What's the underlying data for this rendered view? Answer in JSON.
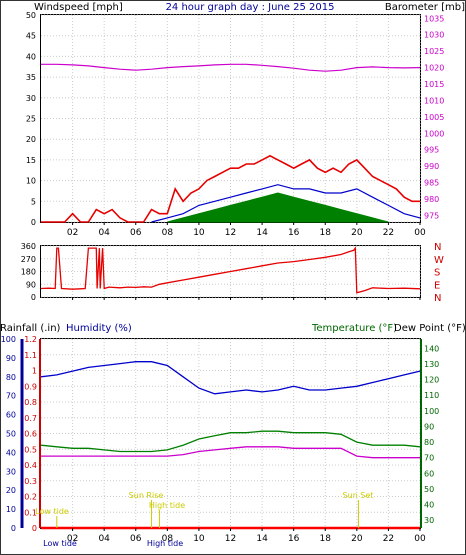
{
  "header": {
    "left_label": "Windspeed [mph]",
    "title": "24 hour graph day : June 25 2015",
    "right_label": "Barometer [mb]"
  },
  "colors": {
    "wind": "#e60000",
    "gust_fill": "#008000",
    "avg": "#0000cc",
    "baro": "#cc00cc",
    "rain_axis": "#cc0000",
    "hum_axis": "#000099",
    "temp_axis": "#006600",
    "sun": "#cccc00",
    "grid": "#cccccc"
  },
  "chart_data": [
    {
      "type": "line",
      "x_ticks": [
        "02",
        "04",
        "06",
        "08",
        "10",
        "12",
        "14",
        "16",
        "18",
        "20",
        "22",
        "00"
      ],
      "left_axis": {
        "ticks": [
          0,
          5,
          10,
          15,
          20,
          25,
          30,
          35,
          40,
          45,
          50
        ],
        "ylim": [
          0,
          50
        ]
      },
      "right_axis": {
        "ticks": [
          975,
          980,
          985,
          990,
          995,
          1000,
          1005,
          1010,
          1015,
          1020,
          1025,
          1030,
          1035
        ],
        "ylim": [
          973,
          1036
        ]
      },
      "series": [
        {
          "axis": "left",
          "x": [
            0,
            0.5,
            1,
            1.5,
            2,
            2.5,
            3,
            3.5,
            4,
            4.5,
            5,
            5.5,
            6,
            6.5,
            7,
            7.5,
            8,
            8.5,
            9,
            9.5,
            10,
            10.5,
            11,
            11.5,
            12,
            12.5,
            13,
            13.5,
            14,
            14.5,
            15,
            15.5,
            16,
            16.5,
            17,
            17.5,
            18,
            18.5,
            19,
            19.5,
            20,
            20.5,
            21,
            21.5,
            22,
            22.5,
            23,
            23.5,
            24
          ],
          "y": [
            0,
            0,
            0,
            0,
            2,
            0,
            0,
            3,
            2,
            3,
            1,
            0,
            0,
            0,
            3,
            2,
            2,
            8,
            5,
            7,
            8,
            10,
            11,
            12,
            13,
            13,
            14,
            14,
            15,
            16,
            15,
            14,
            13,
            14,
            15,
            13,
            12,
            13,
            12,
            14,
            15,
            13,
            11,
            10,
            9,
            8,
            6,
            5,
            5
          ]
        },
        {
          "axis": "left",
          "x": [
            7,
            8,
            9,
            10,
            11,
            12,
            13,
            14,
            15,
            16,
            17,
            18,
            19,
            20,
            21,
            22,
            23,
            24
          ],
          "y": [
            0,
            1,
            2,
            4,
            5,
            6,
            7,
            8,
            9,
            8,
            8,
            7,
            7,
            8,
            6,
            4,
            2,
            1
          ]
        },
        {
          "axis": "left",
          "x": [
            8,
            9,
            10,
            11,
            12,
            13,
            14,
            15,
            16,
            17,
            18,
            19,
            20,
            21,
            22
          ],
          "y": [
            0,
            1,
            2,
            3,
            4,
            5,
            6,
            7,
            6,
            5,
            4,
            3,
            2,
            1,
            0
          ]
        },
        {
          "axis": "right",
          "x": [
            0,
            1,
            2,
            3,
            4,
            5,
            6,
            7,
            8,
            9,
            10,
            11,
            12,
            13,
            14,
            15,
            16,
            17,
            18,
            19,
            20,
            21,
            22,
            23,
            24
          ],
          "y": [
            1021,
            1021,
            1020.8,
            1020.5,
            1020,
            1019.5,
            1019.2,
            1019.5,
            1020,
            1020.3,
            1020.5,
            1020.8,
            1021,
            1021,
            1020.7,
            1020.3,
            1019.8,
            1019.2,
            1018.9,
            1019.2,
            1020,
            1020.2,
            1020,
            1019.9,
            1020
          ]
        }
      ]
    },
    {
      "type": "line",
      "x_ticks": [
        "02",
        "04",
        "06",
        "08",
        "10",
        "12",
        "14",
        "16",
        "18",
        "20",
        "22",
        "00"
      ],
      "left_axis": {
        "ticks": [
          0,
          90,
          180,
          270,
          360
        ],
        "ylim": [
          0,
          360
        ]
      },
      "right_labels": [
        "N",
        "W",
        "S",
        "E",
        "N"
      ],
      "series": [
        {
          "x": [
            0,
            0.5,
            0.9,
            1.0,
            1.1,
            1.3,
            2.0,
            2.5,
            2.8,
            3.0,
            3.5,
            3.55,
            3.7,
            3.75,
            3.9,
            4.0,
            4.3,
            5.0,
            5.5,
            6.0,
            6.5,
            7.0,
            7.5,
            8.0,
            9,
            10,
            11,
            12,
            13,
            14,
            15,
            16,
            17,
            18,
            19,
            19.5,
            19.8,
            19.9,
            20.0,
            20.5,
            21,
            22,
            23,
            24
          ],
          "y": [
            60,
            62,
            60,
            345,
            345,
            60,
            55,
            58,
            60,
            345,
            345,
            60,
            345,
            60,
            345,
            60,
            70,
            65,
            70,
            68,
            72,
            70,
            90,
            100,
            120,
            140,
            160,
            180,
            200,
            220,
            240,
            250,
            265,
            280,
            300,
            320,
            330,
            345,
            30,
            45,
            65,
            60,
            62,
            58
          ]
        }
      ]
    },
    {
      "type": "line",
      "x_ticks": [
        "02",
        "04",
        "06",
        "08",
        "10",
        "12",
        "14",
        "16",
        "18",
        "20",
        "22",
        "00"
      ],
      "labels": {
        "rainfall": "Rainfall (.in)",
        "humidity": "Humidity (%)",
        "temperature": "Temperature (°F)",
        "dew_point": "Dew Point (°F)"
      },
      "left_axis_humidity": {
        "ticks": [
          0,
          10,
          20,
          30,
          40,
          50,
          60,
          70,
          80,
          90,
          100
        ],
        "ylim": [
          0,
          100
        ]
      },
      "left_axis_rain": {
        "ticks": [
          0,
          0.1,
          0.2,
          0.3,
          0.4,
          0.5,
          0.6,
          0.7,
          0.8,
          0.9,
          1,
          1.1,
          1.2
        ],
        "ylim": [
          0,
          1.2
        ]
      },
      "right_axis": {
        "ticks": [
          30,
          40,
          50,
          60,
          70,
          80,
          90,
          100,
          110,
          120,
          130,
          140
        ],
        "ylim": [
          25,
          146
        ]
      },
      "annotations": [
        "Low tide",
        "Sun Rise",
        "High tide",
        "Sun Set",
        "Low tide",
        "High tide"
      ],
      "series": [
        {
          "axis": "humidity",
          "x": [
            0,
            1,
            2,
            3,
            4,
            5,
            6,
            7,
            8,
            9,
            10,
            11,
            12,
            13,
            14,
            15,
            16,
            17,
            18,
            19,
            20,
            21,
            22,
            23,
            24
          ],
          "y": [
            80,
            81,
            83,
            85,
            86,
            87,
            88,
            88,
            86,
            80,
            74,
            71,
            72,
            73,
            72,
            73,
            75,
            73,
            73,
            74,
            75,
            77,
            79,
            81,
            83
          ]
        },
        {
          "axis": "temp",
          "x": [
            0,
            1,
            2,
            3,
            4,
            5,
            6,
            7,
            8,
            9,
            10,
            11,
            12,
            13,
            14,
            15,
            16,
            17,
            18,
            19,
            20,
            21,
            22,
            23,
            24
          ],
          "y": [
            78,
            77,
            76,
            76,
            75,
            74,
            74,
            74,
            75,
            78,
            82,
            84,
            86,
            86,
            87,
            87,
            86,
            86,
            86,
            85,
            80,
            78,
            78,
            78,
            77
          ]
        },
        {
          "axis": "temp",
          "x": [
            0,
            1,
            2,
            3,
            4,
            5,
            6,
            7,
            8,
            9,
            10,
            11,
            12,
            13,
            14,
            15,
            16,
            17,
            18,
            19,
            20,
            21,
            22,
            23,
            24
          ],
          "y": [
            71,
            71,
            71,
            71,
            71,
            71,
            71,
            71,
            71,
            72,
            74,
            75,
            76,
            77,
            77,
            77,
            76,
            76,
            76,
            76,
            71,
            70,
            70,
            70,
            70
          ]
        },
        {
          "axis": "rain",
          "x": [
            0,
            24
          ],
          "y": [
            0,
            0
          ]
        }
      ]
    }
  ]
}
